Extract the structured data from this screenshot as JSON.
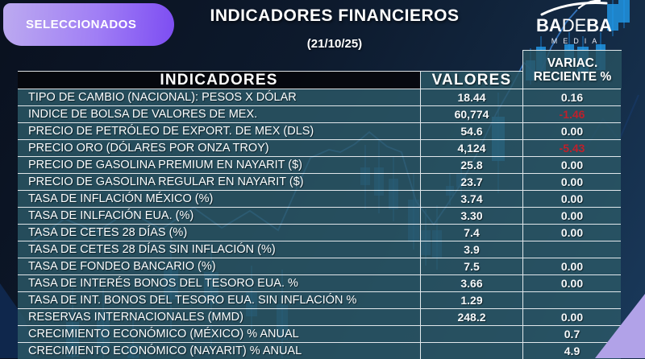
{
  "page": {
    "badge": "SELECCIONADOS",
    "title": "INDICADORES FINANCIEROS",
    "date": "(21/10/25)"
  },
  "logo": {
    "part1": "BA",
    "part2": "DE",
    "part3": "BA",
    "sub": "MEDIA"
  },
  "table": {
    "headers": {
      "col1": "INDICADORES",
      "col2": "VALORES",
      "col3_line1": "VARIAC.",
      "col3_line2": "RECIENTE %"
    },
    "rows": [
      {
        "indicador": "TIPO DE CAMBIO (NACIONAL): PESOS X DÓLAR",
        "valor": "18.44",
        "variacion": "0.16"
      },
      {
        "indicador": "INDICE DE BOLSA DE VALORES DE MEX.",
        "valor": "60,774",
        "variacion": "-1.46"
      },
      {
        "indicador": "PRECIO DE PETRÓLEO DE EXPORT. DE MEX (DLS)",
        "valor": "54.6",
        "variacion": "0.00"
      },
      {
        "indicador": "PRECIO ORO (DÓLARES POR ONZA TROY)",
        "valor": "4,124",
        "variacion": "-5.43"
      },
      {
        "indicador": "PRECIO DE GASOLINA PREMIUM EN NAYARIT ($)",
        "valor": "25.8",
        "variacion": "0.00"
      },
      {
        "indicador": "PRECIO DE GASOLINA REGULAR EN NAYARIT ($)",
        "valor": "23.7",
        "variacion": "0.00"
      },
      {
        "indicador": "TASA DE INFLACIÓN MÉXICO (%)",
        "valor": "3.74",
        "variacion": "0.00"
      },
      {
        "indicador": "TASA DE INLFACIÓN EUA. (%)",
        "valor": "3.30",
        "variacion": "0.00"
      },
      {
        "indicador": "TASA DE CETES 28 DÍAS (%)",
        "valor": "7.4",
        "variacion": "0.00"
      },
      {
        "indicador": "TASA DE CETES 28 DÍAS SIN INFLACIÓN (%)",
        "valor": "3.9",
        "variacion": ""
      },
      {
        "indicador": "TASA DE FONDEO BANCARIO (%)",
        "valor": "7.5",
        "variacion": "0.00"
      },
      {
        "indicador": "TASA DE INTERÉS BONOS DEL TESORO EUA. %",
        "valor": "3.66",
        "variacion": "0.00"
      },
      {
        "indicador": "TASA DE INT. BONOS DEL TESORO  EUA. SIN INFLACIÓN %",
        "valor": "1.29",
        "variacion": ""
      },
      {
        "indicador": "RESERVAS INTERNACIONALES (MMD)",
        "valor": "248.2",
        "variacion": "0.00"
      },
      {
        "indicador": "CRECIMIENTO ECONÓMICO (MÉXICO) % ANUAL",
        "valor": "",
        "variacion": "0.7"
      },
      {
        "indicador": "CRECIMIENTO ECONÓMICO (NAYARIT) % ANUAL",
        "valor": "",
        "variacion": "4.9"
      }
    ]
  },
  "colors": {
    "negative_value": "#bf202b",
    "accent_purple": "#8b5cf6",
    "corner_triangle": "#b1a2e8",
    "table_teal": "#2b5765",
    "candle_blue": "#1e8fe0"
  },
  "chart_data": {
    "type": "table",
    "title": "INDICADORES FINANCIEROS",
    "subtitle": "(21/10/25)",
    "columns": [
      "INDICADORES",
      "VALORES",
      "VARIAC. RECIENTE %"
    ],
    "rows": [
      [
        "TIPO DE CAMBIO (NACIONAL): PESOS X DÓLAR",
        18.44,
        0.16
      ],
      [
        "INDICE DE BOLSA DE VALORES DE MEX.",
        60774,
        -1.46
      ],
      [
        "PRECIO DE PETRÓLEO DE EXPORT. DE MEX (DLS)",
        54.6,
        0.0
      ],
      [
        "PRECIO ORO (DÓLARES POR ONZA TROY)",
        4124,
        -5.43
      ],
      [
        "PRECIO DE GASOLINA PREMIUM EN NAYARIT ($)",
        25.8,
        0.0
      ],
      [
        "PRECIO DE GASOLINA REGULAR EN NAYARIT ($)",
        23.7,
        0.0
      ],
      [
        "TASA DE INFLACIÓN MÉXICO (%)",
        3.74,
        0.0
      ],
      [
        "TASA DE INLFACIÓN EUA. (%)",
        3.3,
        0.0
      ],
      [
        "TASA DE CETES 28 DÍAS (%)",
        7.4,
        0.0
      ],
      [
        "TASA DE CETES 28 DÍAS SIN INFLACIÓN (%)",
        3.9,
        null
      ],
      [
        "TASA DE FONDEO BANCARIO (%)",
        7.5,
        0.0
      ],
      [
        "TASA DE INTERÉS BONOS DEL TESORO EUA. %",
        3.66,
        0.0
      ],
      [
        "TASA DE INT. BONOS DEL TESORO EUA. SIN INFLACIÓN %",
        1.29,
        null
      ],
      [
        "RESERVAS INTERNACIONALES (MMD)",
        248.2,
        0.0
      ],
      [
        "CRECIMIENTO ECONÓMICO (MÉXICO) % ANUAL",
        null,
        0.7
      ],
      [
        "CRECIMIENTO ECONÓMICO (NAYARIT) % ANUAL",
        null,
        4.9
      ]
    ]
  }
}
